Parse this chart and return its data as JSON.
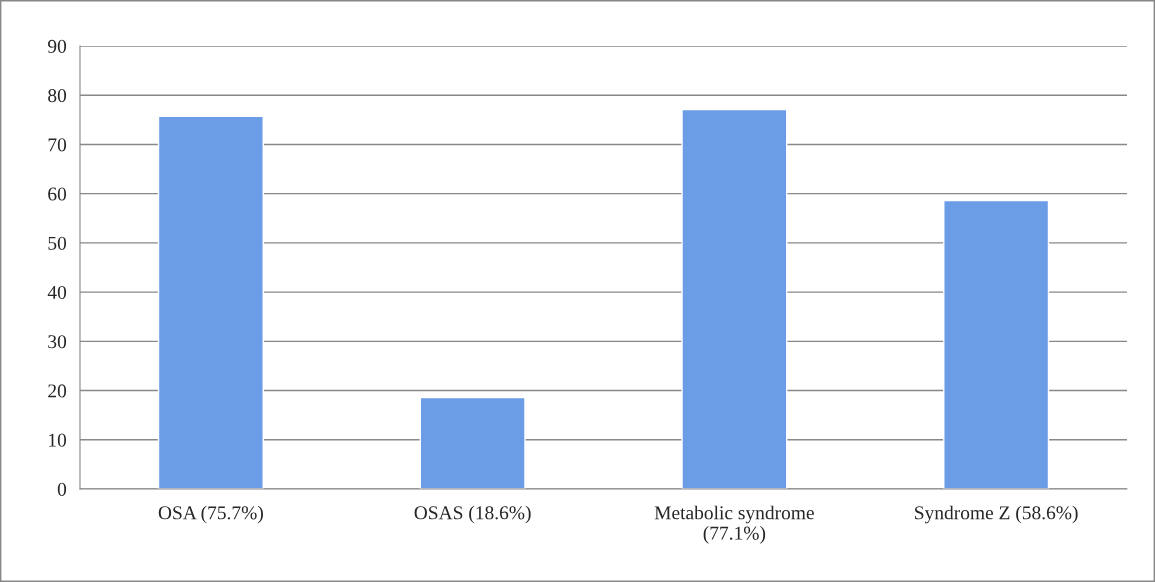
{
  "chart_data": {
    "type": "bar",
    "categories": [
      "OSA (75.7%)",
      "OSAS (18.6%)",
      "Metabolic syndrome\n(77.1%)",
      "Syndrome Z (58.6%)"
    ],
    "values": [
      75.7,
      18.6,
      77.1,
      58.6
    ],
    "color": "#6a9de6",
    "ylim": [
      0,
      90
    ],
    "yticks": [
      0,
      10,
      20,
      30,
      40,
      50,
      60,
      70,
      80,
      90
    ],
    "grid": "y"
  }
}
